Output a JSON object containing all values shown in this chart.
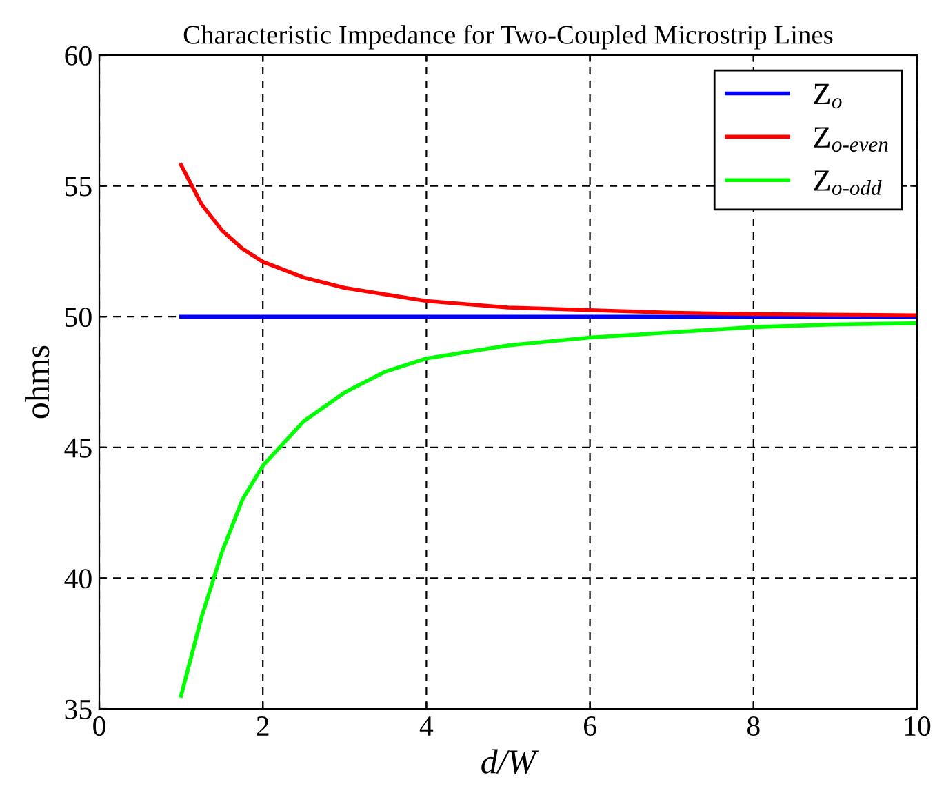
{
  "chart_data": {
    "type": "line",
    "title": "Characteristic Impedance for Two-Coupled Microstrip Lines",
    "xlabel": "d/W",
    "ylabel": "ohms",
    "xlim": [
      0,
      10
    ],
    "ylim": [
      35,
      60
    ],
    "xticks": [
      0,
      2,
      4,
      6,
      8,
      10
    ],
    "yticks": [
      35,
      40,
      45,
      50,
      55,
      60
    ],
    "grid": true,
    "legend": "top right",
    "line_style": "solid",
    "marker": "none",
    "series": [
      {
        "name": "Z$_{o}$",
        "color": "#0000ff",
        "x": [
          1,
          10
        ],
        "values": [
          50,
          50
        ]
      },
      {
        "name": "Z$_{o-even}$",
        "color": "#ff0000",
        "x": [
          1,
          1.25,
          1.5,
          1.75,
          2,
          2.5,
          3,
          3.5,
          4,
          5,
          6,
          7,
          8,
          10
        ],
        "values": [
          55.8,
          54.3,
          53.3,
          52.6,
          52.1,
          51.5,
          51.1,
          50.85,
          50.6,
          50.35,
          50.25,
          50.15,
          50.1,
          50.05
        ]
      },
      {
        "name": "Z$_{o-odd}$",
        "color": "#00ff00",
        "x": [
          1,
          1.25,
          1.5,
          1.75,
          2,
          2.5,
          3,
          3.5,
          4,
          5,
          6,
          7,
          8,
          9,
          10
        ],
        "values": [
          35.5,
          38.5,
          41,
          43,
          44.3,
          46,
          47.1,
          47.9,
          48.4,
          48.9,
          49.2,
          49.4,
          49.6,
          49.7,
          49.75
        ]
      }
    ]
  }
}
